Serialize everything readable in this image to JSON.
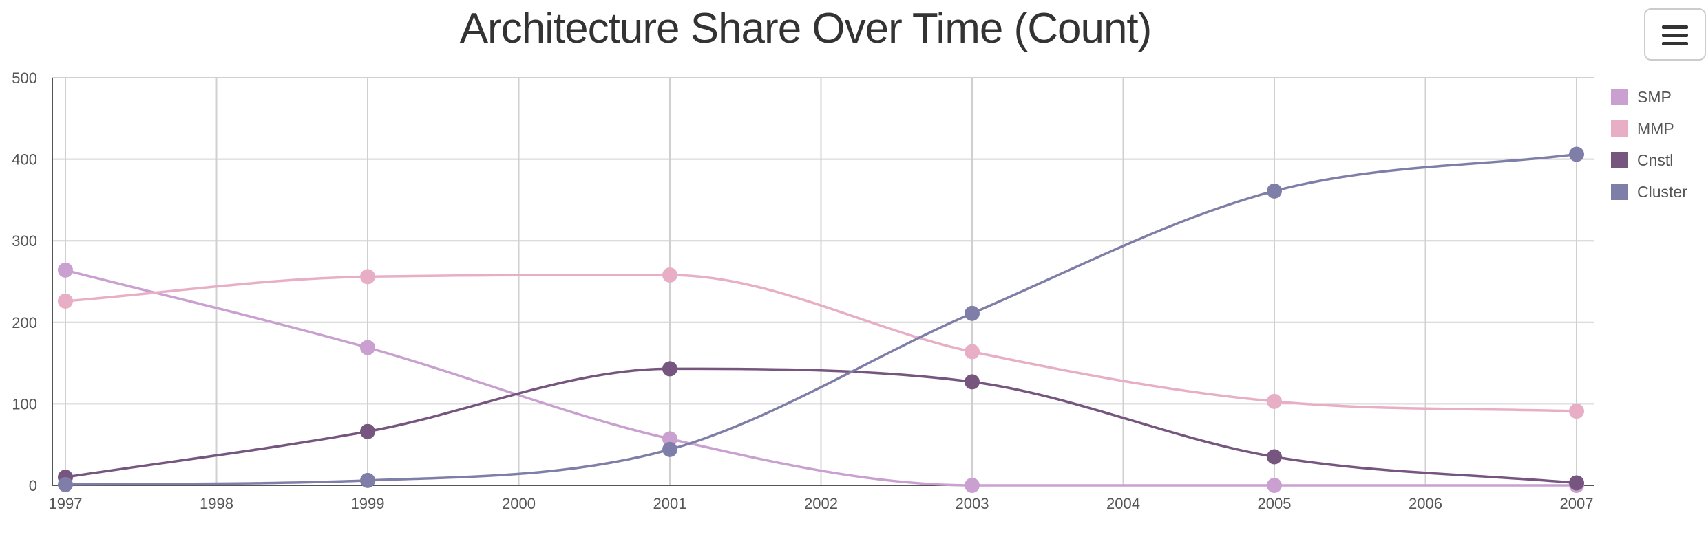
{
  "chart_data": {
    "type": "line",
    "title": "Architecture Share Over Time (Count)",
    "xlabel": "",
    "ylabel": "",
    "x": [
      1997,
      1999,
      2001,
      2003,
      2005,
      2007
    ],
    "x_ticks": [
      "1997",
      "1998",
      "1999",
      "2000",
      "2001",
      "2002",
      "2003",
      "2004",
      "2005",
      "2006",
      "2007"
    ],
    "xlim": [
      1997,
      2007
    ],
    "ylim": [
      0,
      500
    ],
    "y_ticks": [
      "0",
      "100",
      "200",
      "300",
      "400",
      "500"
    ],
    "grid": true,
    "smooth": true,
    "legend_position": "right",
    "series": [
      {
        "name": "SMP",
        "color": "#c9a0d0",
        "values": [
          264,
          169,
          57,
          0,
          0,
          0
        ]
      },
      {
        "name": "MMP",
        "color": "#e8aec5",
        "values": [
          226,
          256,
          258,
          164,
          103,
          91
        ]
      },
      {
        "name": "Cnstl",
        "color": "#76557f",
        "values": [
          10,
          66,
          143,
          127,
          35,
          3
        ]
      },
      {
        "name": "Cluster",
        "color": "#7e7ea8",
        "values": [
          1,
          6,
          44,
          211,
          361,
          406
        ]
      }
    ]
  },
  "toolbar": {
    "menu_icon": "hamburger-menu-icon"
  }
}
